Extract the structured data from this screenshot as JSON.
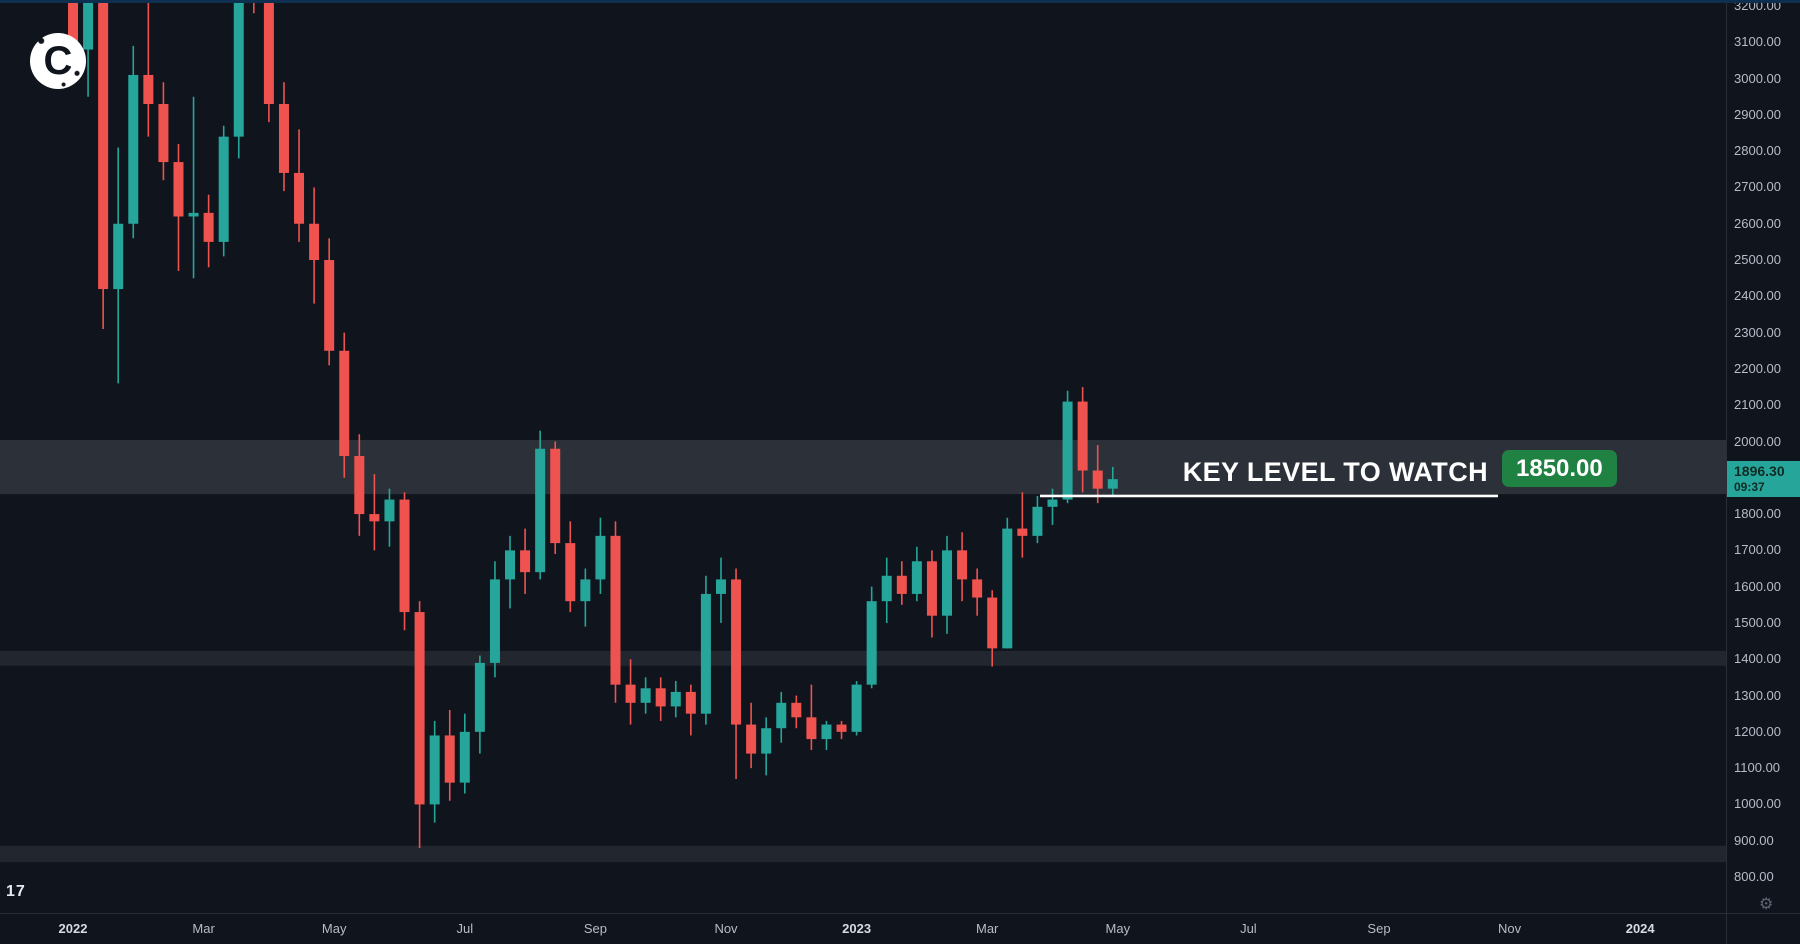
{
  "logo": {
    "letter": "C"
  },
  "watermark": {
    "text": "17"
  },
  "icons": {
    "gear": "⚙"
  },
  "colors": {
    "background": "#10141d",
    "up": "#26a69a",
    "down": "#ef5350",
    "axis_text": "#b7bcc7",
    "scale_border": "#2a2e39",
    "key_level_line": "#ffffff",
    "key_level_badge_bg": "#1f8142",
    "last_price_bg": "#26a69a",
    "last_price_text": "#0e2b26"
  },
  "annotation": {
    "text": "KEY LEVEL TO WATCH",
    "label": "1850.00"
  },
  "price_label": {
    "price": "1896.30",
    "countdown": "09:37"
  },
  "price_scale": {
    "labels": [
      "3200.00",
      "3100.00",
      "3000.00",
      "2900.00",
      "2800.00",
      "2700.00",
      "2600.00",
      "2500.00",
      "2400.00",
      "2300.00",
      "2200.00",
      "2100.00",
      "2000.00",
      "1900.00",
      "1800.00",
      "1700.00",
      "1600.00",
      "1500.00",
      "1400.00",
      "1300.00",
      "1200.00",
      "1100.00",
      "1000.00",
      "900.00",
      "800.00"
    ]
  },
  "time_scale": {
    "labels": [
      {
        "text": "2022",
        "month": 0,
        "year": true
      },
      {
        "text": "Mar",
        "month": 2
      },
      {
        "text": "May",
        "month": 4
      },
      {
        "text": "Jul",
        "month": 6
      },
      {
        "text": "Sep",
        "month": 8
      },
      {
        "text": "Nov",
        "month": 10
      },
      {
        "text": "2023",
        "month": 12,
        "year": true
      },
      {
        "text": "Mar",
        "month": 14
      },
      {
        "text": "May",
        "month": 16
      },
      {
        "text": "Jul",
        "month": 18
      },
      {
        "text": "Sep",
        "month": 20
      },
      {
        "text": "Nov",
        "month": 22
      },
      {
        "text": "2024",
        "month": 24,
        "year": true
      }
    ]
  },
  "chart_data": {
    "type": "candlestick",
    "grid": false,
    "ylim": [
      770,
      3215
    ],
    "x_axis_labels": [
      "2022",
      "Mar",
      "May",
      "Jul",
      "Sep",
      "Nov",
      "2023",
      "Mar",
      "May",
      "Jul",
      "Sep",
      "Nov",
      "2024"
    ],
    "y_axis_labels": [
      "3200.00",
      "3100.00",
      "3000.00",
      "2900.00",
      "2800.00",
      "2700.00",
      "2600.00",
      "2500.00",
      "2400.00",
      "2300.00",
      "2200.00",
      "2100.00",
      "2000.00",
      "1900.00",
      "1800.00",
      "1700.00",
      "1600.00",
      "1500.00",
      "1400.00",
      "1300.00",
      "1200.00",
      "1100.00",
      "1000.00",
      "900.00",
      "800.00"
    ],
    "key_level": 1850,
    "last_price": 1896.3,
    "zones": [
      {
        "from": 1855,
        "to": 2004,
        "color": "rgba(183,196,193,0.17)"
      },
      {
        "from": 1382,
        "to": 1423,
        "color": "rgba(255,255,255,0.08)"
      },
      {
        "from": 841,
        "to": 886,
        "color": "rgba(255,255,255,0.08)"
      }
    ],
    "candles": [
      [
        "2022-01-03",
        3830,
        3910,
        2990,
        3080
      ],
      [
        "2022-01-10",
        3080,
        3420,
        2950,
        3310
      ],
      [
        "2022-01-17",
        3310,
        3330,
        2310,
        2420
      ],
      [
        "2022-01-24",
        2420,
        2810,
        2160,
        2600
      ],
      [
        "2022-01-31",
        2600,
        3090,
        2560,
        3010
      ],
      [
        "2022-02-07",
        3010,
        3280,
        2840,
        2930
      ],
      [
        "2022-02-14",
        2930,
        2990,
        2720,
        2770
      ],
      [
        "2022-02-21",
        2770,
        2820,
        2470,
        2620
      ],
      [
        "2022-02-28",
        2620,
        2950,
        2450,
        2630
      ],
      [
        "2022-03-07",
        2630,
        2680,
        2480,
        2550
      ],
      [
        "2022-03-14",
        2550,
        2870,
        2510,
        2840
      ],
      [
        "2022-03-21",
        2840,
        3450,
        2780,
        3380
      ],
      [
        "2022-03-28",
        3380,
        3420,
        3180,
        3240
      ],
      [
        "2022-04-04",
        3240,
        3310,
        2880,
        2930
      ],
      [
        "2022-04-11",
        2930,
        2990,
        2690,
        2740
      ],
      [
        "2022-04-18",
        2740,
        2860,
        2550,
        2600
      ],
      [
        "2022-04-25",
        2600,
        2700,
        2380,
        2500
      ],
      [
        "2022-05-02",
        2500,
        2560,
        2210,
        2250
      ],
      [
        "2022-05-09",
        2250,
        2300,
        1900,
        1960
      ],
      [
        "2022-05-16",
        1960,
        2020,
        1740,
        1800
      ],
      [
        "2022-05-23",
        1800,
        1910,
        1700,
        1780
      ],
      [
        "2022-05-30",
        1780,
        1870,
        1710,
        1840
      ],
      [
        "2022-06-06",
        1840,
        1860,
        1480,
        1530
      ],
      [
        "2022-06-13",
        1530,
        1560,
        880,
        1000
      ],
      [
        "2022-06-20",
        1000,
        1230,
        950,
        1190
      ],
      [
        "2022-06-27",
        1190,
        1260,
        1010,
        1060
      ],
      [
        "2022-07-04",
        1060,
        1250,
        1030,
        1200
      ],
      [
        "2022-07-11",
        1200,
        1410,
        1140,
        1390
      ],
      [
        "2022-07-18",
        1390,
        1670,
        1350,
        1620
      ],
      [
        "2022-07-25",
        1620,
        1740,
        1540,
        1700
      ],
      [
        "2022-08-01",
        1700,
        1760,
        1580,
        1640
      ],
      [
        "2022-08-08",
        1640,
        2030,
        1620,
        1980
      ],
      [
        "2022-08-15",
        1980,
        2000,
        1690,
        1720
      ],
      [
        "2022-08-22",
        1720,
        1780,
        1530,
        1560
      ],
      [
        "2022-08-29",
        1560,
        1650,
        1490,
        1620
      ],
      [
        "2022-09-05",
        1620,
        1790,
        1580,
        1740
      ],
      [
        "2022-09-12",
        1740,
        1780,
        1280,
        1330
      ],
      [
        "2022-09-19",
        1330,
        1400,
        1220,
        1280
      ],
      [
        "2022-09-26",
        1280,
        1350,
        1250,
        1320
      ],
      [
        "2022-10-03",
        1320,
        1350,
        1230,
        1270
      ],
      [
        "2022-10-10",
        1270,
        1340,
        1240,
        1310
      ],
      [
        "2022-10-17",
        1310,
        1330,
        1190,
        1250
      ],
      [
        "2022-10-24",
        1250,
        1630,
        1220,
        1580
      ],
      [
        "2022-10-31",
        1580,
        1680,
        1500,
        1620
      ],
      [
        "2022-11-07",
        1620,
        1650,
        1070,
        1220
      ],
      [
        "2022-11-14",
        1220,
        1280,
        1100,
        1140
      ],
      [
        "2022-11-21",
        1140,
        1240,
        1080,
        1210
      ],
      [
        "2022-11-28",
        1210,
        1310,
        1170,
        1280
      ],
      [
        "2022-12-05",
        1280,
        1300,
        1210,
        1240
      ],
      [
        "2022-12-12",
        1240,
        1330,
        1150,
        1180
      ],
      [
        "2022-12-19",
        1180,
        1230,
        1150,
        1220
      ],
      [
        "2022-12-26",
        1220,
        1230,
        1180,
        1200
      ],
      [
        "2023-01-02",
        1200,
        1340,
        1190,
        1330
      ],
      [
        "2023-01-09",
        1330,
        1600,
        1320,
        1560
      ],
      [
        "2023-01-16",
        1560,
        1680,
        1500,
        1630
      ],
      [
        "2023-01-23",
        1630,
        1670,
        1550,
        1580
      ],
      [
        "2023-01-30",
        1580,
        1710,
        1560,
        1670
      ],
      [
        "2023-02-06",
        1670,
        1700,
        1460,
        1520
      ],
      [
        "2023-02-13",
        1520,
        1740,
        1470,
        1700
      ],
      [
        "2023-02-20",
        1700,
        1750,
        1560,
        1620
      ],
      [
        "2023-02-27",
        1620,
        1650,
        1520,
        1570
      ],
      [
        "2023-03-06",
        1570,
        1590,
        1380,
        1430
      ],
      [
        "2023-03-13",
        1430,
        1790,
        1430,
        1760
      ],
      [
        "2023-03-20",
        1760,
        1860,
        1680,
        1740
      ],
      [
        "2023-03-27",
        1740,
        1850,
        1720,
        1820
      ],
      [
        "2023-04-03",
        1820,
        1870,
        1770,
        1840
      ],
      [
        "2023-04-10",
        1840,
        2140,
        1830,
        2110
      ],
      [
        "2023-04-17",
        2110,
        2150,
        1860,
        1920
      ],
      [
        "2023-04-24",
        1920,
        1990,
        1830,
        1870
      ],
      [
        "2023-05-01",
        1870,
        1930,
        1850,
        1896.3
      ]
    ]
  }
}
